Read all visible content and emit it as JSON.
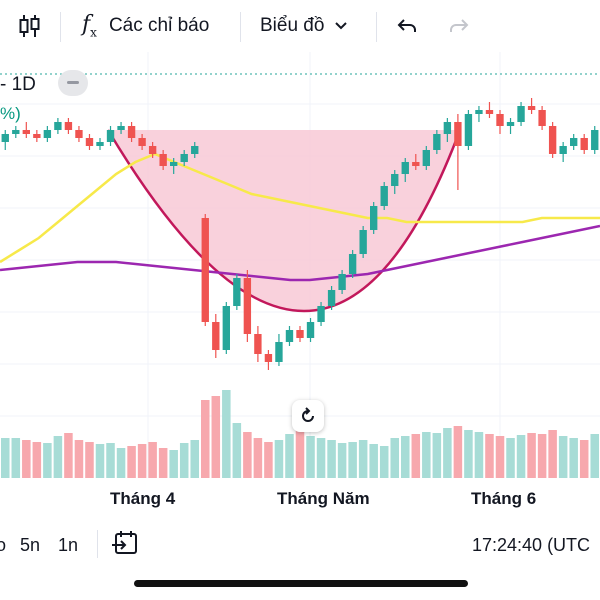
{
  "toolbar": {
    "indicators_label": "Các chỉ báo",
    "chart_label": "Biểu đồ"
  },
  "legend": {
    "interval": "1D",
    "percent_fragment": "%)"
  },
  "x_axis": {
    "labels": [
      "Tháng 4",
      "Tháng Năm",
      "Tháng 6"
    ]
  },
  "bottom": {
    "ranges": [
      "o",
      "5n",
      "1n"
    ],
    "clock": "17:24:40 (UTC"
  },
  "colors": {
    "up": "#26a69a",
    "down": "#ef5350",
    "volume_up": "#a7dcd6",
    "volume_down": "#f7a8ad",
    "ma_yellow": "#f7e94a",
    "ma_purple": "#9c27b0",
    "pattern_fill": "#f8c5d3",
    "pattern_stroke": "#c2185b"
  },
  "chart_data": {
    "type": "candlestick",
    "x_labels": [
      "Tháng 4",
      "Tháng Năm",
      "Tháng 6"
    ],
    "pattern": "cup",
    "candles": [
      {
        "o": 60,
        "h": 63,
        "l": 58,
        "c": 62
      },
      {
        "o": 62,
        "h": 64,
        "l": 61,
        "c": 63
      },
      {
        "o": 63,
        "h": 65,
        "l": 61,
        "c": 62
      },
      {
        "o": 62,
        "h": 63,
        "l": 60,
        "c": 61
      },
      {
        "o": 61,
        "h": 64,
        "l": 60,
        "c": 63
      },
      {
        "o": 63,
        "h": 66,
        "l": 62,
        "c": 65
      },
      {
        "o": 65,
        "h": 66,
        "l": 62,
        "c": 63
      },
      {
        "o": 63,
        "h": 64,
        "l": 60,
        "c": 61
      },
      {
        "o": 61,
        "h": 62,
        "l": 58,
        "c": 59
      },
      {
        "o": 59,
        "h": 61,
        "l": 58,
        "c": 60
      },
      {
        "o": 60,
        "h": 64,
        "l": 59,
        "c": 63
      },
      {
        "o": 63,
        "h": 65,
        "l": 62,
        "c": 64
      },
      {
        "o": 64,
        "h": 65,
        "l": 60,
        "c": 61
      },
      {
        "o": 61,
        "h": 62,
        "l": 58,
        "c": 59
      },
      {
        "o": 59,
        "h": 60,
        "l": 56,
        "c": 57
      },
      {
        "o": 57,
        "h": 58,
        "l": 53,
        "c": 54
      },
      {
        "o": 54,
        "h": 56,
        "l": 52,
        "c": 55
      },
      {
        "o": 55,
        "h": 58,
        "l": 54,
        "c": 57
      },
      {
        "o": 57,
        "h": 60,
        "l": 56,
        "c": 59
      },
      {
        "o": 41,
        "h": 42,
        "l": 14,
        "c": 15
      },
      {
        "o": 15,
        "h": 17,
        "l": 6,
        "c": 8
      },
      {
        "o": 8,
        "h": 20,
        "l": 7,
        "c": 19
      },
      {
        "o": 19,
        "h": 27,
        "l": 18,
        "c": 26
      },
      {
        "o": 26,
        "h": 28,
        "l": 10,
        "c": 12
      },
      {
        "o": 12,
        "h": 14,
        "l": 5,
        "c": 7
      },
      {
        "o": 7,
        "h": 8,
        "l": 3,
        "c": 5
      },
      {
        "o": 5,
        "h": 12,
        "l": 4,
        "c": 10
      },
      {
        "o": 10,
        "h": 14,
        "l": 9,
        "c": 13
      },
      {
        "o": 13,
        "h": 14,
        "l": 10,
        "c": 11
      },
      {
        "o": 11,
        "h": 16,
        "l": 10,
        "c": 15
      },
      {
        "o": 15,
        "h": 20,
        "l": 14,
        "c": 19
      },
      {
        "o": 19,
        "h": 24,
        "l": 18,
        "c": 23
      },
      {
        "o": 23,
        "h": 28,
        "l": 22,
        "c": 27
      },
      {
        "o": 27,
        "h": 33,
        "l": 26,
        "c": 32
      },
      {
        "o": 32,
        "h": 39,
        "l": 31,
        "c": 38
      },
      {
        "o": 38,
        "h": 45,
        "l": 37,
        "c": 44
      },
      {
        "o": 44,
        "h": 50,
        "l": 43,
        "c": 49
      },
      {
        "o": 49,
        "h": 53,
        "l": 47,
        "c": 52
      },
      {
        "o": 52,
        "h": 56,
        "l": 50,
        "c": 55
      },
      {
        "o": 55,
        "h": 57,
        "l": 53,
        "c": 54
      },
      {
        "o": 54,
        "h": 59,
        "l": 53,
        "c": 58
      },
      {
        "o": 58,
        "h": 63,
        "l": 57,
        "c": 62
      },
      {
        "o": 62,
        "h": 66,
        "l": 60,
        "c": 65
      },
      {
        "o": 65,
        "h": 67,
        "l": 48,
        "c": 59
      },
      {
        "o": 59,
        "h": 68,
        "l": 58,
        "c": 67
      },
      {
        "o": 67,
        "h": 69,
        "l": 65,
        "c": 68
      },
      {
        "o": 68,
        "h": 70,
        "l": 66,
        "c": 67
      },
      {
        "o": 67,
        "h": 68,
        "l": 62,
        "c": 64
      },
      {
        "o": 64,
        "h": 66,
        "l": 62,
        "c": 65
      },
      {
        "o": 65,
        "h": 70,
        "l": 64,
        "c": 69
      },
      {
        "o": 69,
        "h": 71,
        "l": 67,
        "c": 68
      },
      {
        "o": 68,
        "h": 69,
        "l": 63,
        "c": 64
      },
      {
        "o": 64,
        "h": 65,
        "l": 56,
        "c": 57
      },
      {
        "o": 57,
        "h": 60,
        "l": 55,
        "c": 59
      },
      {
        "o": 59,
        "h": 62,
        "l": 58,
        "c": 61
      },
      {
        "o": 61,
        "h": 62,
        "l": 57,
        "c": 58
      },
      {
        "o": 58,
        "h": 64,
        "l": 57,
        "c": 63
      }
    ],
    "volumes": [
      40,
      40,
      38,
      36,
      35,
      42,
      45,
      38,
      36,
      34,
      35,
      30,
      32,
      34,
      36,
      30,
      28,
      35,
      38,
      78,
      82,
      88,
      55,
      46,
      40,
      36,
      38,
      44,
      50,
      42,
      40,
      38,
      35,
      36,
      38,
      34,
      32,
      40,
      42,
      44,
      46,
      45,
      50,
      52,
      48,
      46,
      44,
      42,
      40,
      43,
      45,
      44,
      48,
      42,
      40,
      38,
      44
    ],
    "ma_yellow": [
      30,
      33,
      36,
      40,
      44,
      48,
      52,
      55,
      57,
      55,
      53,
      51,
      49,
      47,
      46,
      45,
      44,
      43,
      42,
      41,
      41,
      40,
      40,
      40,
      40,
      40,
      40,
      40,
      41,
      41,
      41,
      41
    ],
    "ma_purple": [
      28,
      28.5,
      29,
      29.5,
      30,
      30,
      30,
      29.5,
      29,
      28.5,
      28,
      27.5,
      27,
      26.5,
      26,
      25.5,
      25.5,
      26,
      26.5,
      27,
      28,
      29,
      30,
      31,
      32,
      33,
      34,
      35,
      36,
      37,
      38,
      39
    ]
  }
}
